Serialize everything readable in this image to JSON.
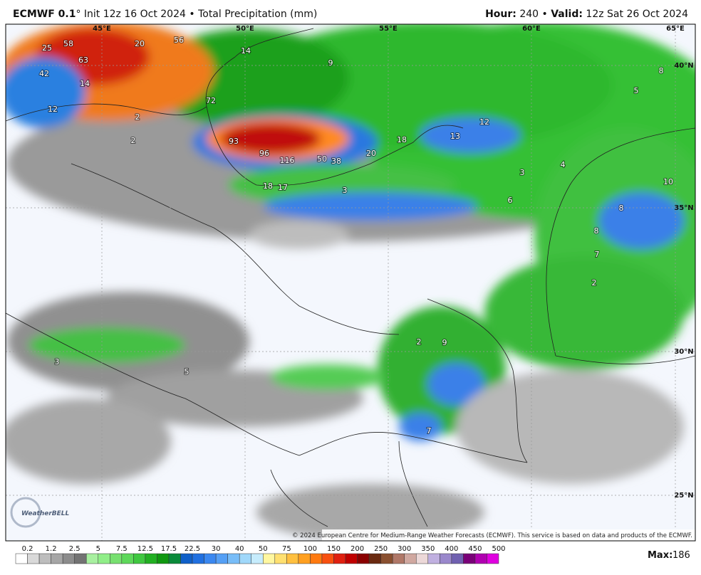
{
  "header": {
    "model": "ECMWF 0.1",
    "degree": "°",
    "init": "Init 12z 16 Oct 2024",
    "separator": "•",
    "field": "Total Precipitation (mm)",
    "hour_label": "Hour:",
    "hour": "240",
    "valid_label": "Valid:",
    "valid": "12z Sat 26 Oct 2024"
  },
  "map": {
    "lon_labels": [
      "45°E",
      "50°E",
      "55°E",
      "60°E",
      "65°E"
    ],
    "lat_labels": [
      "40°N",
      "35°N",
      "30°N",
      "25°N"
    ],
    "value_labels": [
      25,
      58,
      63,
      42,
      14,
      12,
      20,
      56,
      14,
      72,
      93,
      96,
      116,
      50,
      38,
      20,
      18,
      13,
      12,
      3,
      4,
      6,
      8,
      5,
      10,
      8,
      8,
      7,
      2,
      2,
      2,
      18,
      17,
      3,
      9,
      2,
      9,
      3,
      5,
      7
    ],
    "credit": "© 2024 European Centre for Medium-Range Weather Forecasts (ECMWF). This service is based on data and products of the ECMWF.",
    "watermark": "WeatherBELL"
  },
  "colorbar": {
    "ticks": [
      "0.2",
      "1.2",
      "2.5",
      "5",
      "7.5",
      "12.5",
      "17.5",
      "22.5",
      "30",
      "40",
      "50",
      "75",
      "100",
      "150",
      "200",
      "250",
      "300",
      "350",
      "400",
      "450",
      "500"
    ],
    "colors": [
      "#ffffff",
      "#d9d9d9",
      "#bdbdbd",
      "#a6a6a6",
      "#8c8c8c",
      "#737373",
      "#a8f0a0",
      "#90ee88",
      "#78e070",
      "#5ed85a",
      "#40c840",
      "#22b022",
      "#109810",
      "#0a8a3a",
      "#1060c8",
      "#2070e0",
      "#3a88f0",
      "#55a0f5",
      "#78bdf8",
      "#a0d8fa",
      "#c6ecfc",
      "#fff7a0",
      "#ffe070",
      "#ffc040",
      "#ffa020",
      "#ff7a10",
      "#f85010",
      "#e02010",
      "#c00000",
      "#8a0000",
      "#6a2a10",
      "#8a5030",
      "#b07868",
      "#d0a8a0",
      "#ecd8d8",
      "#c0b0e0",
      "#9a88cc",
      "#7060b0",
      "#7a0078",
      "#b000b0",
      "#e000e0"
    ],
    "max_label": "Max:",
    "max": "186"
  }
}
